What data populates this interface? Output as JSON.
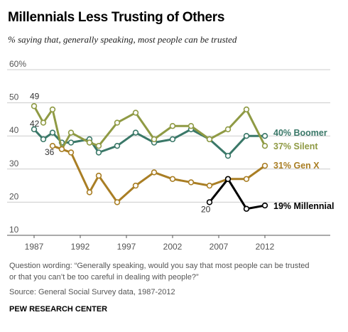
{
  "chart_data": {
    "type": "line",
    "title": "Millennials Less Trusting of Others",
    "subtitle": "% saying that, generally speaking, most people can be trusted",
    "ylim": [
      10,
      60
    ],
    "y_ticks": [
      {
        "value": 60,
        "label": "60%"
      },
      {
        "value": 50,
        "label": "50"
      },
      {
        "value": 40,
        "label": "40"
      },
      {
        "value": 30,
        "label": "30"
      },
      {
        "value": 20,
        "label": "20"
      },
      {
        "value": 10,
        "label": "10"
      }
    ],
    "xlim": [
      1987,
      2012
    ],
    "x_ticks": [
      {
        "value": 1987,
        "label": "1987"
      },
      {
        "value": 1992,
        "label": "1992"
      },
      {
        "value": 1997,
        "label": "1997"
      },
      {
        "value": 2002,
        "label": "2002"
      },
      {
        "value": 2007,
        "label": "2007"
      },
      {
        "value": 2012,
        "label": "2012"
      }
    ],
    "grid": "horizontal",
    "legend": "end-of-line labels",
    "series": [
      {
        "name": "Boomer",
        "end_label": "40% Boomer",
        "color": "#3a7868",
        "x": [
          1987,
          1988,
          1989,
          1990,
          1991,
          1993,
          1994,
          1996,
          1998,
          2000,
          2002,
          2004,
          2006,
          2008,
          2010,
          2012
        ],
        "y": [
          42,
          39,
          41,
          38,
          38,
          39,
          35,
          37,
          41,
          38,
          39,
          42,
          39,
          34,
          40,
          40
        ]
      },
      {
        "name": "Silent",
        "end_label": "37% Silent",
        "color": "#8f9a44",
        "x": [
          1987,
          1988,
          1989,
          1990,
          1991,
          1993,
          1994,
          1996,
          1998,
          2000,
          2002,
          2004,
          2006,
          2008,
          2010,
          2012
        ],
        "y": [
          49,
          44,
          48,
          36,
          41,
          38,
          37,
          44,
          47,
          39,
          43,
          43,
          39,
          42,
          48,
          37
        ]
      },
      {
        "name": "Gen X",
        "end_label": "31% Gen X",
        "color": "#a97e24",
        "x": [
          1989,
          1990,
          1991,
          1993,
          1994,
          1996,
          1998,
          2000,
          2002,
          2004,
          2006,
          2008,
          2010,
          2012
        ],
        "y": [
          37,
          36,
          35,
          23,
          28,
          20,
          25,
          29,
          27,
          26,
          25,
          27,
          27,
          31
        ]
      },
      {
        "name": "Millennial",
        "end_label": "19% Millennial",
        "color": "#000000",
        "x": [
          2006,
          2008,
          2010,
          2012
        ],
        "y": [
          20,
          27,
          18,
          19
        ]
      }
    ],
    "annotations": [
      {
        "text": "49",
        "x": 1987,
        "y": 49
      },
      {
        "text": "42",
        "x": 1987,
        "y": 42
      },
      {
        "text": "36",
        "x": 1990,
        "y": 36
      },
      {
        "text": "20",
        "x": 2006,
        "y": 20
      }
    ]
  },
  "footer": {
    "note": "Question wording: “Generally speaking, would you say that most people can be trusted or that you can’t be too careful in dealing with people?”",
    "source": "Source: General Social Survey data, 1987-2012",
    "credit": "PEW RESEARCH CENTER"
  }
}
